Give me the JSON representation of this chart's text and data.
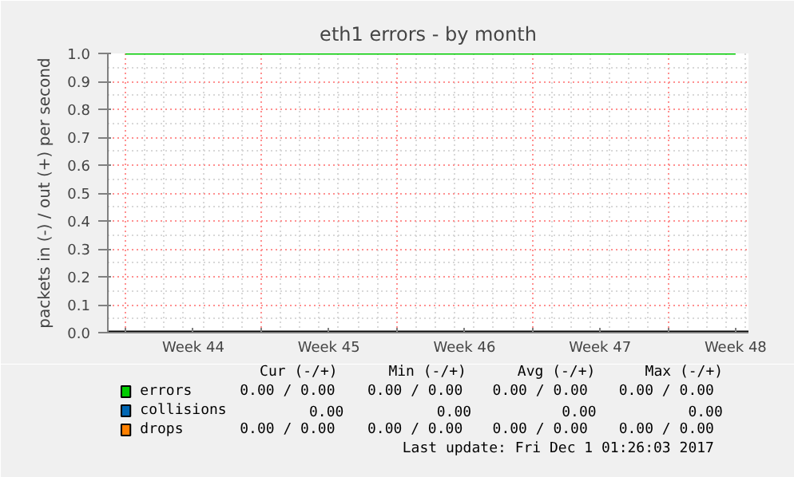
{
  "chart_data": {
    "type": "line",
    "title": "eth1 errors - by month",
    "ylabel": "packets in (-) / out (+) per second",
    "categories": [
      null,
      "Week 44",
      null,
      "Week 45",
      null,
      "Week 46",
      null,
      "Week 47",
      null,
      "Week 48"
    ],
    "ylim": [
      0,
      1
    ],
    "yticks": [
      {
        "value": 0,
        "label": "0.0"
      },
      {
        "value": 0.1,
        "label": "0.1"
      },
      {
        "value": 0.2,
        "label": "0.2"
      },
      {
        "value": 0.3,
        "label": "0.3"
      },
      {
        "value": 0.4,
        "label": "0.4"
      },
      {
        "value": 0.5,
        "label": "0.5"
      },
      {
        "value": 0.6,
        "label": "0.6"
      },
      {
        "value": 0.7,
        "label": "0.7"
      },
      {
        "value": 0.8,
        "label": "0.8"
      },
      {
        "value": 0.9,
        "label": "0.9"
      },
      {
        "value": 1,
        "label": "1.0"
      }
    ],
    "grid": true,
    "legend": "bottom",
    "series": [
      {
        "name": "errors",
        "color": "#00cc00",
        "values": [
          1,
          1,
          1,
          1,
          1,
          1,
          1,
          1,
          1,
          1
        ]
      },
      {
        "name": "collisions",
        "color": "#0066b3",
        "values": [
          null,
          null,
          null,
          null,
          null,
          null,
          null,
          null,
          null,
          null
        ]
      },
      {
        "name": "drops",
        "color": "#ff8000",
        "values": [
          null,
          null,
          null,
          null,
          null,
          null,
          null,
          null,
          null,
          null
        ]
      }
    ],
    "annotations": [
      "Cur (-/+)",
      "Min (-/+)",
      "Avg (-/+)",
      "Max (-/+)",
      "0.00 /  0.00",
      "0.00 /  0.00",
      "0.00 /  0.00",
      "0.00 /  0.00",
      "0.00",
      "0.00",
      "0.00",
      "0.00",
      "0.00 /  0.00",
      "0.00 /  0.00",
      "0.00 /  0.00",
      "0.00 /  0.00",
      "Last update: Fri Dec  1 01:26:03 2017"
    ]
  }
}
